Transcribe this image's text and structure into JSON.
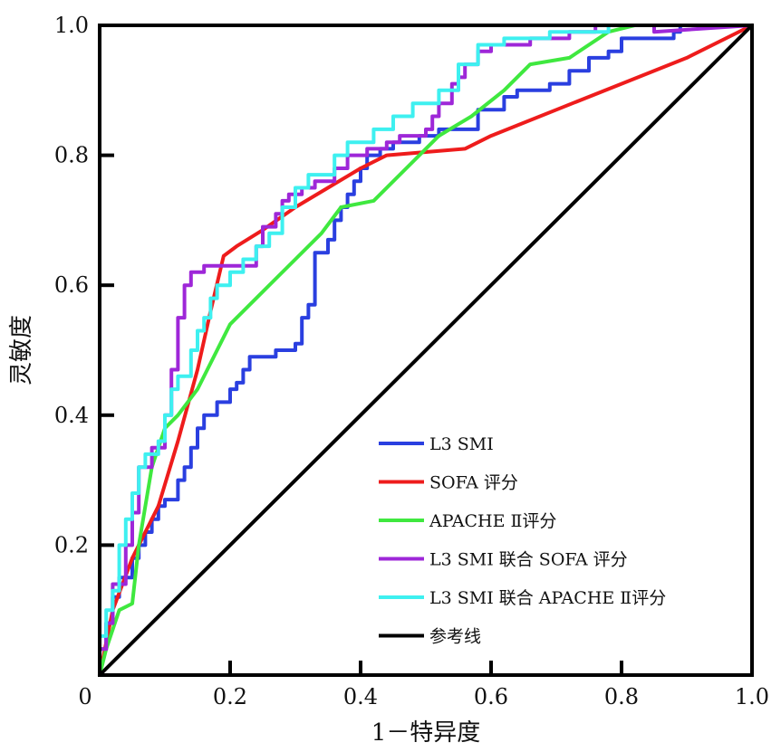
{
  "chart_data": {
    "type": "line",
    "xlabel": "1－特异度",
    "ylabel": "灵敏度",
    "xlim": [
      0,
      1
    ],
    "ylim": [
      0,
      1
    ],
    "x_ticks": [
      "0",
      "0.2",
      "0.4",
      "0.6",
      "0.8",
      "1.0"
    ],
    "y_ticks": [
      "0.2",
      "0.4",
      "0.6",
      "0.8",
      "1.0"
    ],
    "grid": false,
    "legend_position": "bottom-right",
    "series": [
      {
        "name": "L3 SMI",
        "color": "#2a3fe0",
        "step": true,
        "points": [
          [
            0,
            0
          ],
          [
            0,
            0.04
          ],
          [
            0.01,
            0.04
          ],
          [
            0.01,
            0.08
          ],
          [
            0.02,
            0.08
          ],
          [
            0.02,
            0.12
          ],
          [
            0.03,
            0.12
          ],
          [
            0.03,
            0.15
          ],
          [
            0.05,
            0.15
          ],
          [
            0.05,
            0.18
          ],
          [
            0.06,
            0.18
          ],
          [
            0.06,
            0.2
          ],
          [
            0.07,
            0.2
          ],
          [
            0.07,
            0.22
          ],
          [
            0.08,
            0.22
          ],
          [
            0.08,
            0.24
          ],
          [
            0.09,
            0.24
          ],
          [
            0.09,
            0.26
          ],
          [
            0.1,
            0.26
          ],
          [
            0.1,
            0.27
          ],
          [
            0.12,
            0.27
          ],
          [
            0.12,
            0.3
          ],
          [
            0.13,
            0.3
          ],
          [
            0.13,
            0.32
          ],
          [
            0.14,
            0.32
          ],
          [
            0.14,
            0.35
          ],
          [
            0.15,
            0.35
          ],
          [
            0.15,
            0.38
          ],
          [
            0.16,
            0.38
          ],
          [
            0.16,
            0.4
          ],
          [
            0.18,
            0.4
          ],
          [
            0.18,
            0.42
          ],
          [
            0.2,
            0.42
          ],
          [
            0.2,
            0.44
          ],
          [
            0.21,
            0.44
          ],
          [
            0.21,
            0.45
          ],
          [
            0.22,
            0.45
          ],
          [
            0.22,
            0.47
          ],
          [
            0.23,
            0.47
          ],
          [
            0.23,
            0.49
          ],
          [
            0.27,
            0.49
          ],
          [
            0.27,
            0.5
          ],
          [
            0.3,
            0.5
          ],
          [
            0.3,
            0.51
          ],
          [
            0.31,
            0.51
          ],
          [
            0.31,
            0.55
          ],
          [
            0.32,
            0.55
          ],
          [
            0.32,
            0.57
          ],
          [
            0.33,
            0.57
          ],
          [
            0.33,
            0.65
          ],
          [
            0.35,
            0.65
          ],
          [
            0.35,
            0.67
          ],
          [
            0.36,
            0.67
          ],
          [
            0.36,
            0.7
          ],
          [
            0.37,
            0.7
          ],
          [
            0.37,
            0.72
          ],
          [
            0.38,
            0.72
          ],
          [
            0.38,
            0.74
          ],
          [
            0.39,
            0.74
          ],
          [
            0.39,
            0.76
          ],
          [
            0.4,
            0.76
          ],
          [
            0.4,
            0.78
          ],
          [
            0.41,
            0.78
          ],
          [
            0.41,
            0.8
          ],
          [
            0.43,
            0.8
          ],
          [
            0.43,
            0.81
          ],
          [
            0.45,
            0.81
          ],
          [
            0.45,
            0.82
          ],
          [
            0.49,
            0.82
          ],
          [
            0.49,
            0.83
          ],
          [
            0.52,
            0.83
          ],
          [
            0.52,
            0.84
          ],
          [
            0.58,
            0.84
          ],
          [
            0.58,
            0.87
          ],
          [
            0.62,
            0.87
          ],
          [
            0.62,
            0.89
          ],
          [
            0.64,
            0.89
          ],
          [
            0.64,
            0.9
          ],
          [
            0.69,
            0.9
          ],
          [
            0.69,
            0.91
          ],
          [
            0.72,
            0.91
          ],
          [
            0.72,
            0.93
          ],
          [
            0.75,
            0.93
          ],
          [
            0.75,
            0.95
          ],
          [
            0.78,
            0.95
          ],
          [
            0.78,
            0.96
          ],
          [
            0.8,
            0.96
          ],
          [
            0.8,
            0.98
          ],
          [
            0.88,
            0.98
          ],
          [
            0.88,
            0.99
          ],
          [
            0.89,
            0.99
          ],
          [
            0.89,
            1.0
          ],
          [
            1.0,
            1.0
          ]
        ]
      },
      {
        "name": "SOFA 评分",
        "color": "#ee1c1c",
        "step": false,
        "points": [
          [
            0,
            0
          ],
          [
            0.02,
            0.1
          ],
          [
            0.05,
            0.18
          ],
          [
            0.07,
            0.22
          ],
          [
            0.09,
            0.26
          ],
          [
            0.12,
            0.36
          ],
          [
            0.15,
            0.47
          ],
          [
            0.17,
            0.56
          ],
          [
            0.19,
            0.645
          ],
          [
            0.21,
            0.66
          ],
          [
            0.25,
            0.685
          ],
          [
            0.3,
            0.72
          ],
          [
            0.35,
            0.75
          ],
          [
            0.4,
            0.78
          ],
          [
            0.44,
            0.8
          ],
          [
            0.5,
            0.805
          ],
          [
            0.56,
            0.81
          ],
          [
            0.6,
            0.83
          ],
          [
            0.7,
            0.87
          ],
          [
            0.8,
            0.91
          ],
          [
            0.9,
            0.95
          ],
          [
            1.0,
            1.0
          ]
        ]
      },
      {
        "name": "APACHE Ⅱ评分",
        "color": "#3fe83f",
        "step": false,
        "points": [
          [
            0,
            0
          ],
          [
            0.01,
            0.04
          ],
          [
            0.02,
            0.07
          ],
          [
            0.03,
            0.1
          ],
          [
            0.05,
            0.11
          ],
          [
            0.06,
            0.2
          ],
          [
            0.08,
            0.32
          ],
          [
            0.1,
            0.38
          ],
          [
            0.12,
            0.4
          ],
          [
            0.15,
            0.44
          ],
          [
            0.18,
            0.5
          ],
          [
            0.2,
            0.54
          ],
          [
            0.24,
            0.58
          ],
          [
            0.27,
            0.61
          ],
          [
            0.3,
            0.64
          ],
          [
            0.34,
            0.68
          ],
          [
            0.37,
            0.72
          ],
          [
            0.42,
            0.73
          ],
          [
            0.47,
            0.78
          ],
          [
            0.52,
            0.83
          ],
          [
            0.57,
            0.86
          ],
          [
            0.62,
            0.9
          ],
          [
            0.66,
            0.94
          ],
          [
            0.72,
            0.95
          ],
          [
            0.78,
            0.99
          ],
          [
            0.82,
            1.0
          ],
          [
            1.0,
            1.0
          ]
        ]
      },
      {
        "name": "L3 SMI 联合 SOFA 评分",
        "color": "#9e27d8",
        "step": true,
        "points": [
          [
            0,
            0
          ],
          [
            0,
            0.04
          ],
          [
            0.01,
            0.04
          ],
          [
            0.01,
            0.08
          ],
          [
            0.02,
            0.08
          ],
          [
            0.02,
            0.14
          ],
          [
            0.04,
            0.14
          ],
          [
            0.04,
            0.2
          ],
          [
            0.05,
            0.2
          ],
          [
            0.05,
            0.25
          ],
          [
            0.06,
            0.25
          ],
          [
            0.06,
            0.32
          ],
          [
            0.08,
            0.32
          ],
          [
            0.08,
            0.35
          ],
          [
            0.1,
            0.35
          ],
          [
            0.1,
            0.4
          ],
          [
            0.11,
            0.4
          ],
          [
            0.11,
            0.47
          ],
          [
            0.12,
            0.47
          ],
          [
            0.12,
            0.55
          ],
          [
            0.13,
            0.55
          ],
          [
            0.13,
            0.6
          ],
          [
            0.14,
            0.6
          ],
          [
            0.14,
            0.62
          ],
          [
            0.16,
            0.62
          ],
          [
            0.16,
            0.63
          ],
          [
            0.24,
            0.63
          ],
          [
            0.24,
            0.66
          ],
          [
            0.25,
            0.66
          ],
          [
            0.25,
            0.69
          ],
          [
            0.27,
            0.69
          ],
          [
            0.27,
            0.71
          ],
          [
            0.28,
            0.71
          ],
          [
            0.28,
            0.73
          ],
          [
            0.29,
            0.73
          ],
          [
            0.29,
            0.74
          ],
          [
            0.31,
            0.74
          ],
          [
            0.31,
            0.75
          ],
          [
            0.33,
            0.75
          ],
          [
            0.33,
            0.76
          ],
          [
            0.36,
            0.76
          ],
          [
            0.36,
            0.78
          ],
          [
            0.38,
            0.78
          ],
          [
            0.38,
            0.8
          ],
          [
            0.41,
            0.8
          ],
          [
            0.41,
            0.81
          ],
          [
            0.44,
            0.81
          ],
          [
            0.44,
            0.82
          ],
          [
            0.46,
            0.82
          ],
          [
            0.46,
            0.83
          ],
          [
            0.5,
            0.83
          ],
          [
            0.5,
            0.84
          ],
          [
            0.51,
            0.84
          ],
          [
            0.51,
            0.86
          ],
          [
            0.52,
            0.86
          ],
          [
            0.52,
            0.88
          ],
          [
            0.54,
            0.88
          ],
          [
            0.54,
            0.91
          ],
          [
            0.55,
            0.91
          ],
          [
            0.55,
            0.92
          ],
          [
            0.56,
            0.92
          ],
          [
            0.56,
            0.94
          ],
          [
            0.58,
            0.94
          ],
          [
            0.58,
            0.96
          ],
          [
            0.6,
            0.96
          ],
          [
            0.6,
            0.97
          ],
          [
            0.66,
            0.97
          ],
          [
            0.66,
            0.98
          ],
          [
            0.72,
            0.98
          ],
          [
            0.72,
            0.99
          ],
          [
            0.76,
            0.99
          ],
          [
            0.76,
            1.0
          ],
          [
            0.85,
            1.0
          ],
          [
            0.85,
            0.99
          ],
          [
            1.0,
            1.0
          ]
        ]
      },
      {
        "name": "L3 SMI 联合 APACHE Ⅱ评分",
        "color": "#3ef0f0",
        "step": true,
        "points": [
          [
            0,
            0
          ],
          [
            0,
            0.06
          ],
          [
            0.01,
            0.06
          ],
          [
            0.01,
            0.1
          ],
          [
            0.02,
            0.1
          ],
          [
            0.02,
            0.13
          ],
          [
            0.03,
            0.13
          ],
          [
            0.03,
            0.2
          ],
          [
            0.04,
            0.2
          ],
          [
            0.04,
            0.24
          ],
          [
            0.05,
            0.24
          ],
          [
            0.05,
            0.28
          ],
          [
            0.06,
            0.28
          ],
          [
            0.06,
            0.32
          ],
          [
            0.07,
            0.32
          ],
          [
            0.07,
            0.34
          ],
          [
            0.09,
            0.34
          ],
          [
            0.09,
            0.36
          ],
          [
            0.1,
            0.36
          ],
          [
            0.1,
            0.4
          ],
          [
            0.11,
            0.4
          ],
          [
            0.11,
            0.44
          ],
          [
            0.12,
            0.44
          ],
          [
            0.12,
            0.46
          ],
          [
            0.14,
            0.46
          ],
          [
            0.14,
            0.5
          ],
          [
            0.15,
            0.5
          ],
          [
            0.15,
            0.53
          ],
          [
            0.16,
            0.53
          ],
          [
            0.16,
            0.55
          ],
          [
            0.17,
            0.55
          ],
          [
            0.17,
            0.58
          ],
          [
            0.18,
            0.58
          ],
          [
            0.18,
            0.6
          ],
          [
            0.2,
            0.6
          ],
          [
            0.2,
            0.62
          ],
          [
            0.22,
            0.62
          ],
          [
            0.22,
            0.64
          ],
          [
            0.24,
            0.64
          ],
          [
            0.24,
            0.66
          ],
          [
            0.26,
            0.66
          ],
          [
            0.26,
            0.68
          ],
          [
            0.28,
            0.68
          ],
          [
            0.28,
            0.72
          ],
          [
            0.3,
            0.72
          ],
          [
            0.3,
            0.75
          ],
          [
            0.32,
            0.75
          ],
          [
            0.32,
            0.77
          ],
          [
            0.36,
            0.77
          ],
          [
            0.36,
            0.8
          ],
          [
            0.38,
            0.8
          ],
          [
            0.38,
            0.82
          ],
          [
            0.42,
            0.82
          ],
          [
            0.42,
            0.84
          ],
          [
            0.45,
            0.84
          ],
          [
            0.45,
            0.86
          ],
          [
            0.48,
            0.86
          ],
          [
            0.48,
            0.88
          ],
          [
            0.52,
            0.88
          ],
          [
            0.52,
            0.9
          ],
          [
            0.55,
            0.9
          ],
          [
            0.55,
            0.94
          ],
          [
            0.58,
            0.94
          ],
          [
            0.58,
            0.97
          ],
          [
            0.62,
            0.97
          ],
          [
            0.62,
            0.98
          ],
          [
            0.69,
            0.98
          ],
          [
            0.69,
            0.99
          ],
          [
            0.78,
            0.99
          ],
          [
            0.78,
            1.0
          ],
          [
            1.0,
            1.0
          ]
        ]
      },
      {
        "name": "参考线",
        "color": "#000000",
        "step": false,
        "points": [
          [
            0,
            0
          ],
          [
            1,
            1
          ]
        ]
      }
    ]
  }
}
